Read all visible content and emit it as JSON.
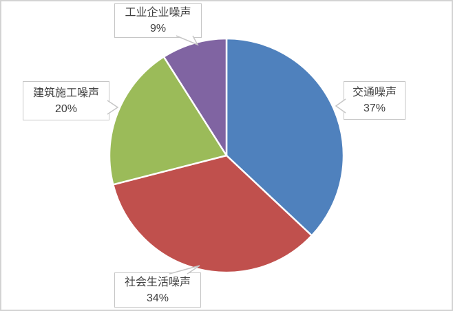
{
  "frame": {
    "background": "#ffffff",
    "border_color": "#d3d3d3"
  },
  "label_box": {
    "fill": "#ffffff",
    "border_color": "#c6c6c6",
    "text_color": "#404040"
  },
  "chart_data": {
    "type": "pie",
    "title": "",
    "categories": [
      "交通噪声",
      "社会生活噪声",
      "建筑施工噪声",
      "工业企业噪声"
    ],
    "values": [
      37,
      34,
      20,
      9
    ],
    "value_labels": [
      "37%",
      "34%",
      "20%",
      "9%"
    ],
    "colors": [
      "#4f81bd",
      "#c0504d",
      "#9bbb59",
      "#8064a2"
    ],
    "unit": "%",
    "start_angle": "12 o'clock, clockwise",
    "legend": "none",
    "grid": "off",
    "data_label_style": "white callout boxes with gray border, category name on first line and percentage on second line"
  }
}
